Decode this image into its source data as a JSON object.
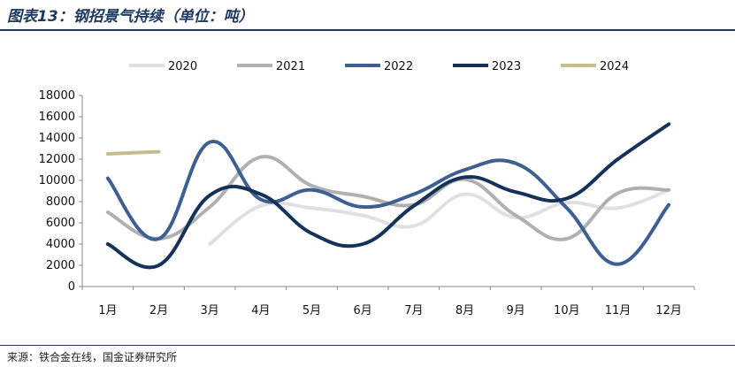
{
  "title": "图表13：钢招景气持续（单位：吨）",
  "source": "来源：铁合金在线，国金证券研究所",
  "chart_data": {
    "type": "line",
    "title": "钢招景气持续（单位：吨）",
    "categories": [
      "1月",
      "2月",
      "3月",
      "4月",
      "5月",
      "6月",
      "7月",
      "8月",
      "9月",
      "10月",
      "11月",
      "12月"
    ],
    "ylim": [
      0,
      18000
    ],
    "yticks": [
      0,
      2000,
      4000,
      6000,
      8000,
      10000,
      12000,
      14000,
      16000,
      18000
    ],
    "legend_position": "top",
    "grid": false,
    "series": [
      {
        "name": "2020",
        "color": "#e0e0e0",
        "values": [
          null,
          null,
          4000,
          7600,
          7400,
          6700,
          5700,
          8700,
          6500,
          7900,
          7400,
          9100
        ]
      },
      {
        "name": "2021",
        "color": "#b0b0b0",
        "values": [
          7000,
          4500,
          7500,
          12200,
          9500,
          8500,
          7700,
          10100,
          6700,
          4500,
          8800,
          9100
        ]
      },
      {
        "name": "2022",
        "color": "#3d5f92",
        "values": [
          10200,
          4500,
          13600,
          8200,
          9100,
          7500,
          8700,
          11000,
          11600,
          7400,
          2100,
          7700
        ]
      },
      {
        "name": "2023",
        "color": "#14325a",
        "values": [
          4000,
          2000,
          8600,
          8700,
          5000,
          4000,
          7600,
          10300,
          8900,
          8300,
          12000,
          15300
        ]
      },
      {
        "name": "2024",
        "color": "#c8bb8e",
        "values": [
          12500,
          12700,
          null,
          null,
          null,
          null,
          null,
          null,
          null,
          null,
          null,
          null
        ]
      }
    ]
  }
}
